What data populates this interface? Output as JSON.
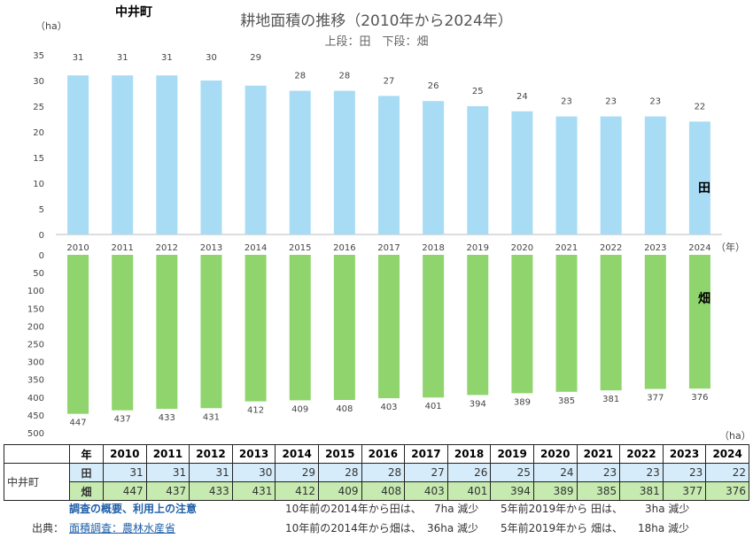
{
  "header": {
    "town": "中井町",
    "title": "耕地面積の推移（2010年から2024年）",
    "subtitle": "上段：田　下段：畑"
  },
  "chart_data": {
    "type": "bar",
    "categories": [
      "2010",
      "2011",
      "2012",
      "2013",
      "2014",
      "2015",
      "2016",
      "2017",
      "2018",
      "2019",
      "2020",
      "2021",
      "2022",
      "2023",
      "2024"
    ],
    "x_unit": "（年）",
    "series": [
      {
        "name": "田",
        "values": [
          31,
          31,
          31,
          30,
          29,
          28,
          28,
          27,
          26,
          25,
          24,
          23,
          23,
          23,
          22
        ],
        "color": "#a8dcf5",
        "ylabel": "（ha）",
        "ylim": [
          0,
          35
        ],
        "yticks": [
          0,
          5,
          10,
          15,
          20,
          25,
          30,
          35
        ]
      },
      {
        "name": "畑",
        "values": [
          447,
          437,
          433,
          431,
          412,
          409,
          408,
          403,
          401,
          394,
          389,
          385,
          381,
          377,
          376
        ],
        "color": "#8fd46c",
        "ylabel": "（ha）",
        "ylim": [
          0,
          500
        ],
        "yticks": [
          0,
          50,
          100,
          150,
          200,
          250,
          300,
          350,
          400,
          450,
          500
        ],
        "inverted": true
      }
    ]
  },
  "table": {
    "header_label": "年",
    "town": "中井町",
    "rows": [
      {
        "label": "田",
        "values": [
          "31",
          "31",
          "31",
          "30",
          "29",
          "28",
          "28",
          "27",
          "26",
          "25",
          "24",
          "23",
          "23",
          "23",
          "22"
        ]
      },
      {
        "label": "畑",
        "values": [
          "447",
          "437",
          "433",
          "431",
          "412",
          "409",
          "408",
          "403",
          "401",
          "394",
          "389",
          "385",
          "381",
          "377",
          "376"
        ]
      }
    ]
  },
  "footer": {
    "overview_link": "調査の概要、利用上の注意",
    "source_label": "出典：",
    "source_link": "面積調査：農林水産省",
    "note_ta_10": "10年前の2014年から田は、",
    "note_ta_10_val": "7ha 減少",
    "note_ta_5": "5年前2019年から 田は、",
    "note_ta_5_val": "3ha 減少",
    "note_hata_10": "10年前の2014年から畑は、",
    "note_hata_10_val": "36ha 減少",
    "note_hata_5": "5年前2019年から 畑は、",
    "note_hata_5_val": "18ha 減少"
  }
}
